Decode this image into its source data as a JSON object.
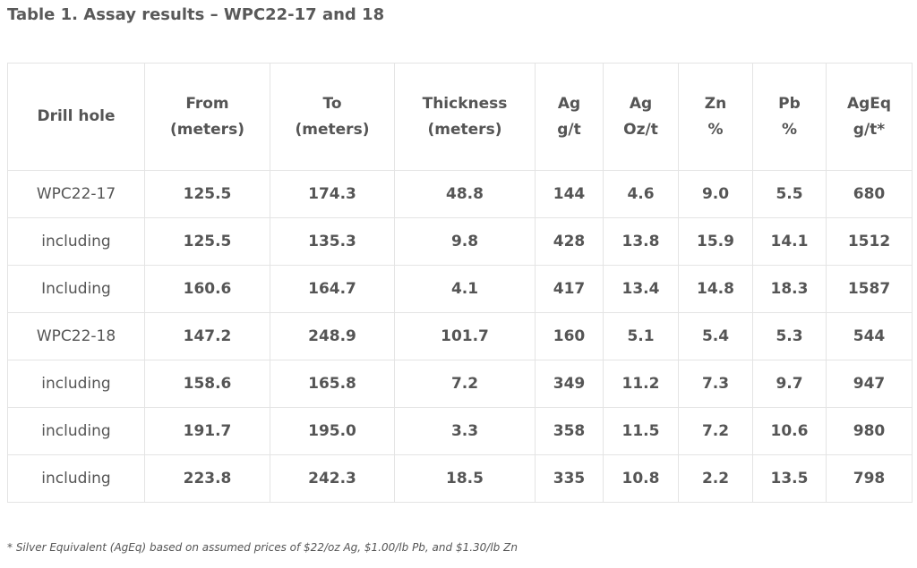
{
  "title": "Table 1. Assay results – WPC22-17 and 18",
  "table": {
    "headers": [
      {
        "line1": "Drill hole",
        "line2": ""
      },
      {
        "line1": "From",
        "line2": "(meters)"
      },
      {
        "line1": "To",
        "line2": "(meters)"
      },
      {
        "line1": "Thickness",
        "line2": "(meters)"
      },
      {
        "line1": "Ag",
        "line2": "g/t"
      },
      {
        "line1": "Ag",
        "line2": "Oz/t"
      },
      {
        "line1": "Zn",
        "line2": "%"
      },
      {
        "line1": "Pb",
        "line2": "%"
      },
      {
        "line1": "AgEq",
        "line2": "g/t*"
      }
    ],
    "rows": [
      [
        "WPC22-17",
        "125.5",
        "174.3",
        "48.8",
        "144",
        "4.6",
        "9.0",
        "5.5",
        "680"
      ],
      [
        "including",
        "125.5",
        "135.3",
        "9.8",
        "428",
        "13.8",
        "15.9",
        "14.1",
        "1512"
      ],
      [
        "Including",
        "160.6",
        "164.7",
        "4.1",
        "417",
        "13.4",
        "14.8",
        "18.3",
        "1587"
      ],
      [
        "WPC22-18",
        "147.2",
        "248.9",
        "101.7",
        "160",
        "5.1",
        "5.4",
        "5.3",
        "544"
      ],
      [
        "including",
        "158.6",
        "165.8",
        "7.2",
        "349",
        "11.2",
        "7.3",
        "9.7",
        "947"
      ],
      [
        "including",
        "191.7",
        "195.0",
        "3.3",
        "358",
        "11.5",
        "7.2",
        "10.6",
        "980"
      ],
      [
        "including",
        "223.8",
        "242.3",
        "18.5",
        "335",
        "10.8",
        "2.2",
        "13.5",
        "798"
      ]
    ]
  },
  "footnote": "* Silver Equivalent (AgEq) based on assumed prices of $22/oz Ag, $1.00/lb Pb, and $1.30/lb Zn"
}
